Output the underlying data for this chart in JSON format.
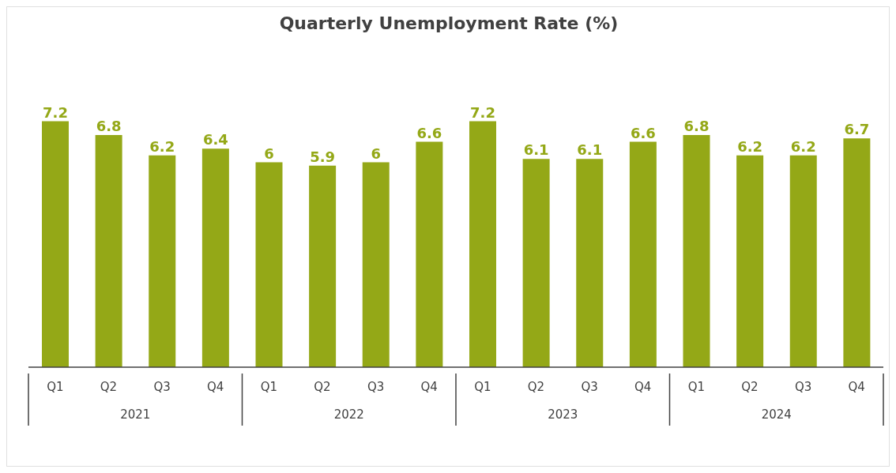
{
  "chart_data": {
    "type": "bar",
    "title": "Quarterly Unemployment Rate (%)",
    "categories": [
      "Q1",
      "Q2",
      "Q3",
      "Q4",
      "Q1",
      "Q2",
      "Q3",
      "Q4",
      "Q1",
      "Q2",
      "Q3",
      "Q4",
      "Q1",
      "Q2",
      "Q3",
      "Q4"
    ],
    "values": [
      7.2,
      6.8,
      6.2,
      6.4,
      6,
      5.9,
      6,
      6.6,
      7.2,
      6.1,
      6.1,
      6.6,
      6.8,
      6.2,
      6.2,
      6.7
    ],
    "color": "#94a817",
    "data_labels": true,
    "grid": false,
    "legend": false,
    "annotations": [
      "2021",
      "2022",
      "2023",
      "2024"
    ]
  }
}
